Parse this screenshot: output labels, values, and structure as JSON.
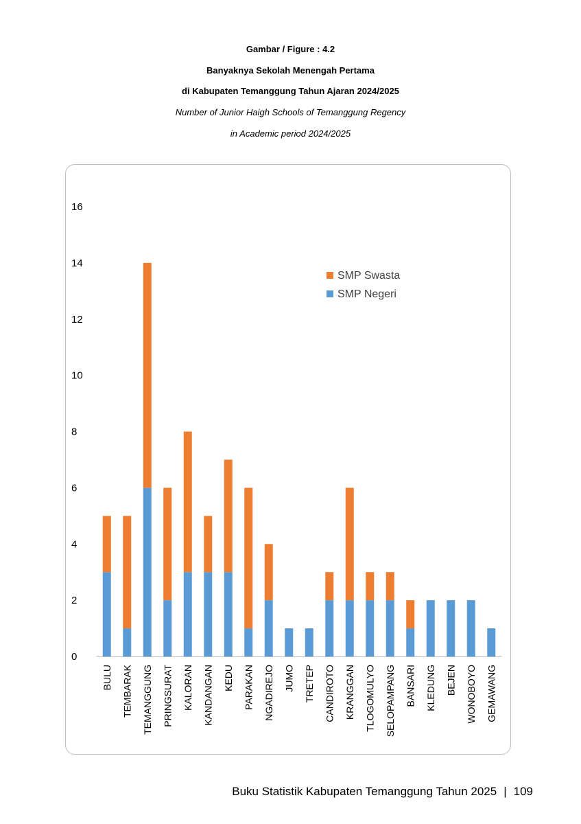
{
  "header": {
    "line1": "Gambar / Figure  : 4.2",
    "line2": "Banyaknya Sekolah Menengah Pertama",
    "line3": "di Kabupaten Temanggung Tahun Ajaran 2024/2025",
    "line4": "Number of Junior Haigh Schools of Temanggung Regency",
    "line5": "in Academic period 2024/2025"
  },
  "footer": {
    "book_title": "Buku Statistik Kabupaten Temanggung Tahun 2025",
    "separator": "|",
    "page_number": "109"
  },
  "colors": {
    "negeri": "#5b9bd5",
    "swasta": "#ed7d31"
  },
  "chart_data": {
    "type": "bar",
    "stacked": true,
    "categories": [
      "BULU",
      "TEMBARAK",
      "TEMANGGUNG",
      "PRINGSURAT",
      "KALORAN",
      "KANDANGAN",
      "KEDU",
      "PARAKAN",
      "NGADIREJO",
      "JUMO",
      "TRETEP",
      "CANDIROTO",
      "KRANGGAN",
      "TLOGOMULYO",
      "SELOPAMPANG",
      "BANSARI",
      "KLEDUNG",
      "BEJEN",
      "WONOBOYO",
      "GEMAWANG"
    ],
    "series": [
      {
        "name": "SMP Negeri",
        "values": [
          3,
          1,
          6,
          2,
          3,
          3,
          3,
          1,
          2,
          1,
          1,
          2,
          2,
          2,
          2,
          1,
          2,
          2,
          2,
          1
        ]
      },
      {
        "name": "SMP Swasta",
        "values": [
          2,
          4,
          8,
          4,
          5,
          2,
          4,
          5,
          2,
          0,
          0,
          1,
          4,
          1,
          1,
          1,
          0,
          0,
          0,
          0
        ]
      }
    ],
    "ylim": [
      0,
      16
    ],
    "yticks": [
      "0",
      "2",
      "4",
      "6",
      "8",
      "10",
      "12",
      "14",
      "16"
    ],
    "legend_order": [
      "SMP Swasta",
      "SMP Negeri"
    ],
    "legend_position": "top-right",
    "grid": false
  }
}
